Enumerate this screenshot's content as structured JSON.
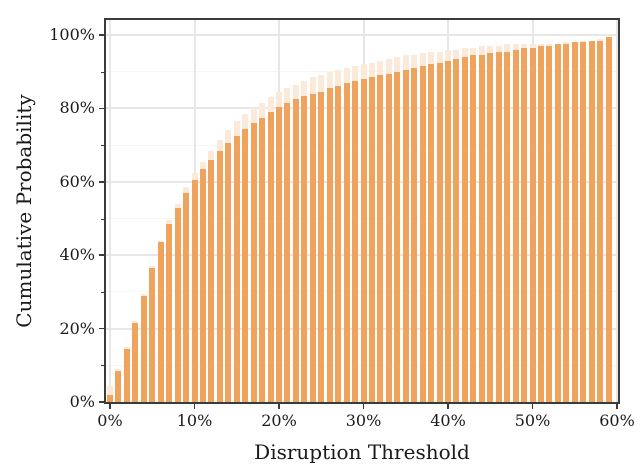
{
  "chart": {
    "x_ticks": [
      "0%",
      "10%",
      "20%",
      "30%",
      "40%",
      "50%",
      "60%"
    ],
    "y_ticks": [
      "0%",
      "20%",
      "40%",
      "60%",
      "80%",
      "100%"
    ],
    "colors": {
      "primary_bar": "#F0A35C",
      "secondary_bar": "#FBEADA",
      "spine": "#3B3B3B",
      "grid_major": "#E7E7E7",
      "grid_minor": "#F5F5F5",
      "text": "#1A1A1A",
      "background": "#FFFFFF"
    }
  },
  "chart_data": {
    "type": "bar",
    "title": "",
    "xlabel": "Disruption Threshold",
    "ylabel": "Cumulative Probability",
    "x_unit": "percent",
    "y_unit": "percent",
    "x": [
      0,
      1,
      2,
      3,
      4,
      5,
      6,
      7,
      8,
      9,
      10,
      11,
      12,
      13,
      14,
      15,
      16,
      17,
      18,
      19,
      20,
      21,
      22,
      23,
      24,
      25,
      26,
      27,
      28,
      29,
      30,
      31,
      32,
      33,
      34,
      35,
      36,
      37,
      38,
      39,
      40,
      41,
      42,
      43,
      44,
      45,
      46,
      47,
      48,
      49,
      50,
      51,
      52,
      53,
      54,
      55,
      56,
      57,
      58,
      59
    ],
    "series": [
      {
        "name": "background-light-orange",
        "color": "#FBEADA",
        "values": [
          4.5,
          9,
          15,
          22,
          29.5,
          37,
          44,
          49.5,
          54,
          58.5,
          62.5,
          65.5,
          68.5,
          71.5,
          74,
          76.5,
          78.5,
          80,
          81.5,
          83,
          84.5,
          85.5,
          86.5,
          87.5,
          88.5,
          89,
          90,
          90.5,
          91,
          91.5,
          92,
          92.5,
          93,
          93.5,
          94,
          94.5,
          94.5,
          95,
          95.5,
          95.5,
          96,
          96,
          96.5,
          96.5,
          97,
          97,
          97,
          97.5,
          97.5,
          97.5,
          97.5,
          97.5,
          97.5,
          97.5,
          98,
          98,
          98.5,
          98.5,
          99,
          99.5
        ]
      },
      {
        "name": "foreground-orange",
        "color": "#F0A35C",
        "values": [
          2,
          8.5,
          14.5,
          21.5,
          29,
          36.5,
          43.5,
          48.5,
          53,
          57,
          60.5,
          63.5,
          66,
          68.5,
          70.5,
          72.5,
          74.5,
          76,
          77.5,
          79,
          80.5,
          81.5,
          82.5,
          83.5,
          84,
          84.5,
          85.5,
          86,
          87,
          87.5,
          88,
          88.5,
          89,
          89.5,
          90,
          90.5,
          91,
          91.5,
          92,
          92.5,
          93,
          93.5,
          94,
          94.5,
          94.5,
          95,
          95.5,
          95.5,
          96,
          96.5,
          96.5,
          97,
          97,
          97.5,
          97.5,
          98,
          98,
          98.5,
          98.5,
          99.5
        ]
      }
    ],
    "axes": {
      "x_major": [
        0,
        10,
        20,
        30,
        40,
        50,
        60
      ],
      "y_major": [
        0,
        20,
        40,
        60,
        80,
        100
      ],
      "y_minor": [
        10,
        30,
        50,
        70,
        90
      ],
      "xlim": [
        -0.5,
        60.2
      ],
      "ylim": [
        0,
        104
      ]
    },
    "layout_hints": {
      "grid": true,
      "legend": false,
      "bar_width_ratio": 0.7,
      "plot_border": "all-four-spines"
    }
  }
}
